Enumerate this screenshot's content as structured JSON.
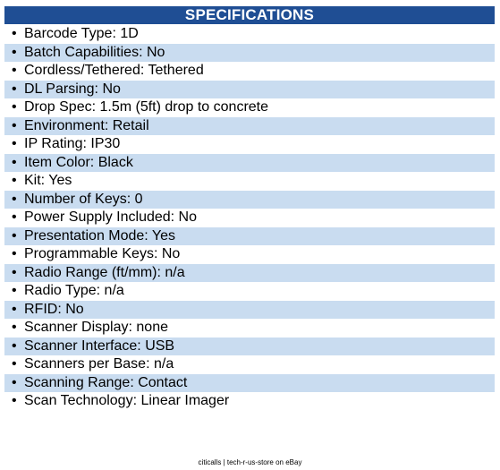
{
  "header": {
    "title": "SPECIFICATIONS"
  },
  "specs": [
    {
      "text": "Barcode Type: 1D",
      "shaded": false
    },
    {
      "text": "Batch Capabilities: No",
      "shaded": true
    },
    {
      "text": "Cordless/Tethered: Tethered",
      "shaded": false
    },
    {
      "text": "DL Parsing: No",
      "shaded": true
    },
    {
      "text": "Drop Spec: 1.5m (5ft) drop to concrete",
      "shaded": false
    },
    {
      "text": "Environment: Retail",
      "shaded": true
    },
    {
      "text": "IP Rating: IP30",
      "shaded": false
    },
    {
      "text": "Item Color: Black",
      "shaded": true
    },
    {
      "text": "Kit: Yes",
      "shaded": false
    },
    {
      "text": "Number of Keys: 0",
      "shaded": true
    },
    {
      "text": "Power Supply Included: No",
      "shaded": false
    },
    {
      "text": "Presentation Mode: Yes",
      "shaded": true
    },
    {
      "text": "Programmable Keys: No",
      "shaded": false
    },
    {
      "text": "Radio Range (ft/mm): n/a",
      "shaded": true
    },
    {
      "text": "Radio Type: n/a",
      "shaded": false
    },
    {
      "text": "RFID: No",
      "shaded": true
    },
    {
      "text": "Scanner Display: none",
      "shaded": false
    },
    {
      "text": "Scanner Interface: USB",
      "shaded": true
    },
    {
      "text": "Scanners per Base: n/a",
      "shaded": false
    },
    {
      "text": "Scanning Range: Contact",
      "shaded": true
    },
    {
      "text": "Scan Technology: Linear Imager",
      "shaded": false
    }
  ],
  "bullet_char": "•",
  "footer": {
    "text": "citicalls | tech-r-us-store on eBay"
  },
  "colors": {
    "header_bg": "#1f4e94",
    "row_shade": "#c9dcf0"
  }
}
